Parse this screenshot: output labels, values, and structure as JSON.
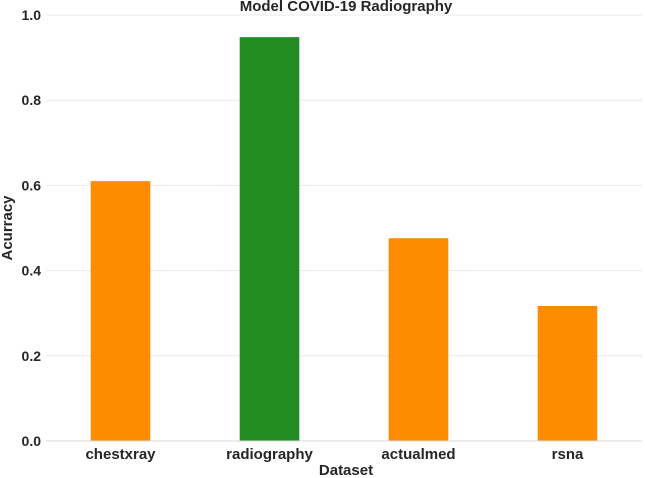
{
  "chart_data": {
    "type": "bar",
    "title": "Model COVID-19 Radiography",
    "xlabel": "Dataset",
    "ylabel": "Acurracy",
    "categories": [
      "chestxray",
      "radiography",
      "actualmed",
      "rsna"
    ],
    "values": [
      0.61,
      0.948,
      0.476,
      0.317
    ],
    "bar_colors": [
      "#ff8c00",
      "#228b22",
      "#ff8c00",
      "#ff8c00"
    ],
    "ylim": [
      0,
      1.0
    ],
    "yticks": [
      "0.0",
      "0.2",
      "0.4",
      "0.6",
      "0.8",
      "1.0"
    ],
    "grid": true
  }
}
